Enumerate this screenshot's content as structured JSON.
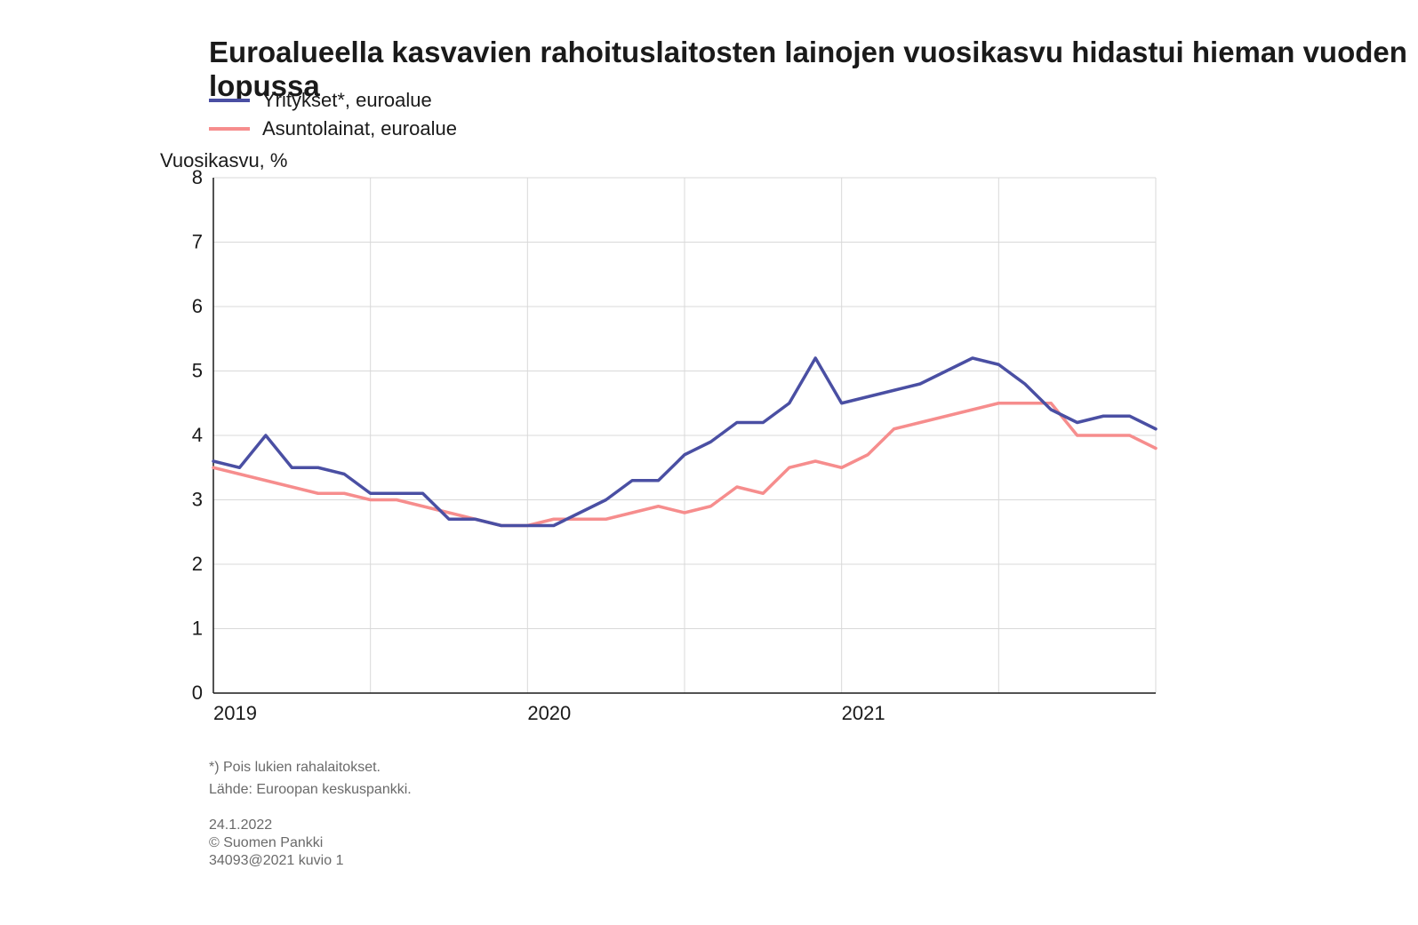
{
  "title": "Euroalueella kasvavien rahoituslaitosten lainojen vuosikasvu hidastui hieman vuoden lopussa",
  "legend": {
    "series1": {
      "label": "Yritykset*, euroalue",
      "color": "#4a4fa3"
    },
    "series2": {
      "label": "Asuntolainat, euroalue",
      "color": "#f68d8d"
    }
  },
  "chart": {
    "type": "line",
    "background_color": "#ffffff",
    "grid_color": "#d9d9d9",
    "axis_color": "#1a1a1a",
    "line_width": 3.5,
    "ylabel": "Vuosikasvu, %",
    "ylim": [
      0,
      8
    ],
    "ytick_step": 1,
    "x_categories": [
      "2019",
      "",
      "2020",
      "",
      "2021",
      "",
      ""
    ],
    "x_positions": [
      0,
      1,
      2,
      3,
      4,
      5,
      6
    ],
    "n_points": 37,
    "series1_values": [
      3.6,
      3.5,
      4.0,
      3.5,
      3.5,
      3.4,
      3.1,
      3.1,
      3.1,
      2.7,
      2.7,
      2.6,
      2.6,
      2.6,
      2.8,
      3.0,
      3.3,
      3.3,
      3.7,
      3.9,
      4.2,
      4.2,
      4.5,
      5.2,
      4.5,
      4.6,
      4.7,
      4.8,
      5.0,
      5.2,
      5.1,
      4.8,
      4.4,
      4.2,
      4.3,
      4.3,
      4.1
    ],
    "series2_values": [
      3.5,
      3.4,
      3.3,
      3.2,
      3.1,
      3.1,
      3.0,
      3.0,
      2.9,
      2.8,
      2.7,
      2.6,
      2.6,
      2.7,
      2.7,
      2.7,
      2.8,
      2.9,
      2.8,
      2.9,
      3.2,
      3.1,
      3.5,
      3.6,
      3.5,
      3.7,
      4.1,
      4.2,
      4.3,
      4.4,
      4.5,
      4.5,
      4.5,
      4.0,
      4.0,
      4.0,
      3.8
    ],
    "series1_color": "#4a4fa3",
    "series2_color": "#f68d8d",
    "label_fontsize": 22
  },
  "footnotes": {
    "f1": "*) Pois lukien rahalaitokset.",
    "f2": "Lähde: Euroopan keskuspankki.",
    "f3": "24.1.2022",
    "f4": "© Suomen Pankki",
    "f5": "34093@2021 kuvio 1"
  }
}
